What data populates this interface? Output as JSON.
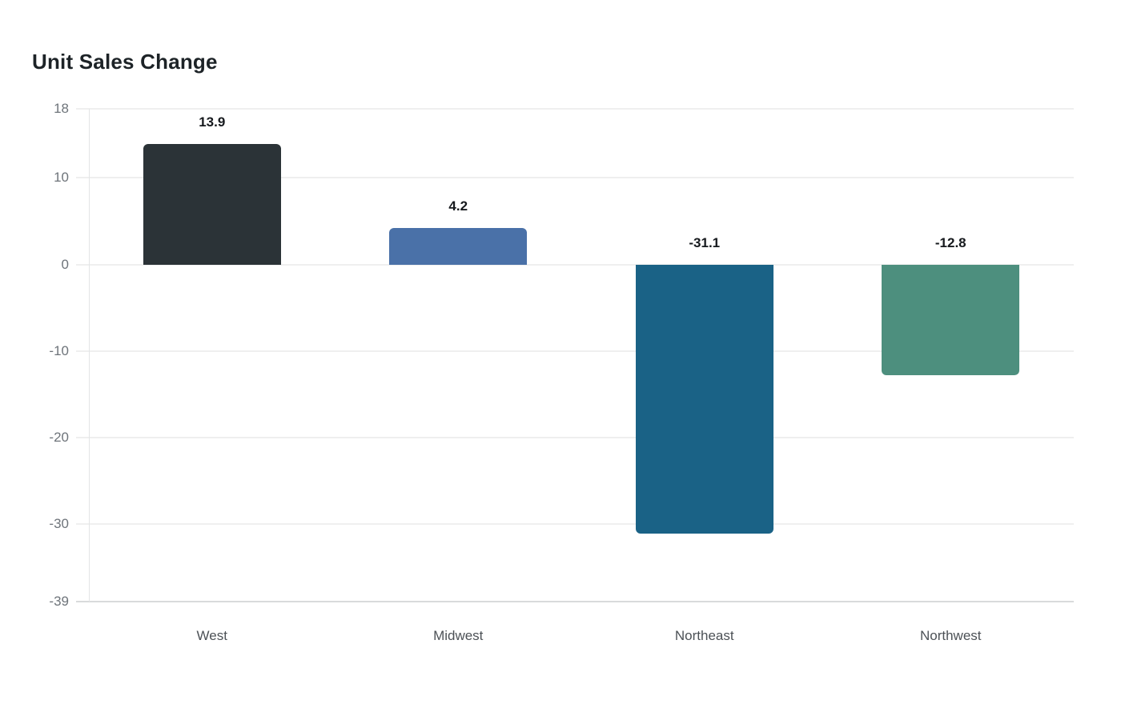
{
  "title": "Unit Sales Change",
  "chart_data": {
    "type": "bar",
    "title": "Unit Sales Change",
    "xlabel": "",
    "ylabel": "",
    "categories": [
      "West",
      "Midwest",
      "Northeast",
      "Northwest"
    ],
    "values": [
      13.9,
      4.2,
      -31.1,
      -12.8
    ],
    "value_labels": [
      "13.9",
      "4.2",
      "-31.1",
      "-12.8"
    ],
    "bar_colors": [
      "#2b3337",
      "#4a71a8",
      "#1a6286",
      "#4d8f7e"
    ],
    "y_ticks": [
      18,
      10,
      0,
      -10,
      -20,
      -30,
      -39
    ],
    "y_tick_labels": [
      "18",
      "10",
      "0",
      "-10",
      "-20",
      "-30",
      "-39"
    ],
    "ylim": [
      -39,
      18
    ],
    "grid": true,
    "legend": false
  },
  "colors": {
    "background": "#ffffff",
    "title_text": "#1d2327",
    "value_label_text": "#16191d",
    "y_tick_text": "#6e747a",
    "category_text": "#4c5156",
    "gridline": "#efefef",
    "baseline": "#d9dadb",
    "axis_line": "#e3e5e6"
  }
}
